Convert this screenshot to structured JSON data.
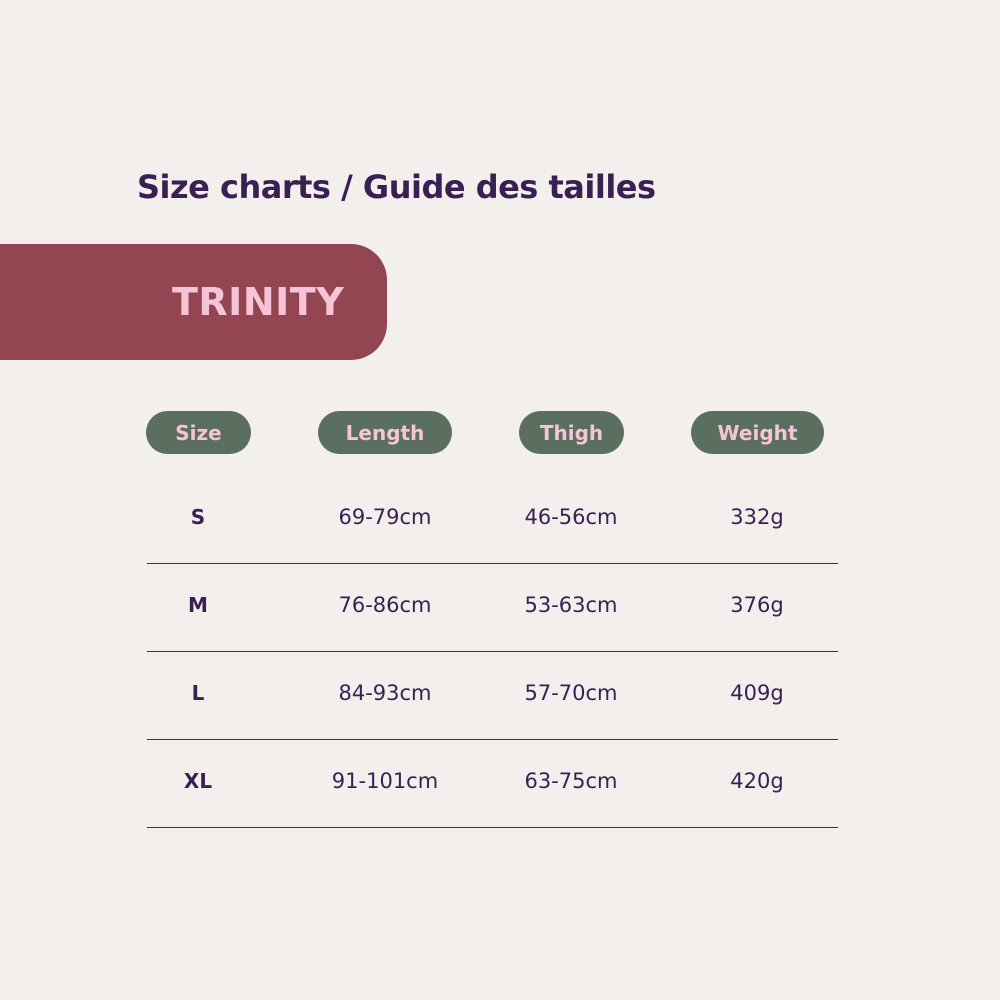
{
  "title": "Size charts / Guide des tailles",
  "product": "TRINITY",
  "colors": {
    "background": "#f3efec",
    "banner": "#934552",
    "pill": "#5b6f61",
    "pill_text": "#f6c4d6",
    "text": "#3a1f52"
  },
  "table": {
    "headers": [
      "Size",
      "Length",
      "Thigh",
      "Weight"
    ],
    "rows": [
      [
        "S",
        "69-79cm",
        "46-56cm",
        "332g"
      ],
      [
        "M",
        "76-86cm",
        "53-63cm",
        "376g"
      ],
      [
        "L",
        "84-93cm",
        "57-70cm",
        "409g"
      ],
      [
        "XL",
        "91-101cm",
        "63-75cm",
        "420g"
      ]
    ]
  }
}
